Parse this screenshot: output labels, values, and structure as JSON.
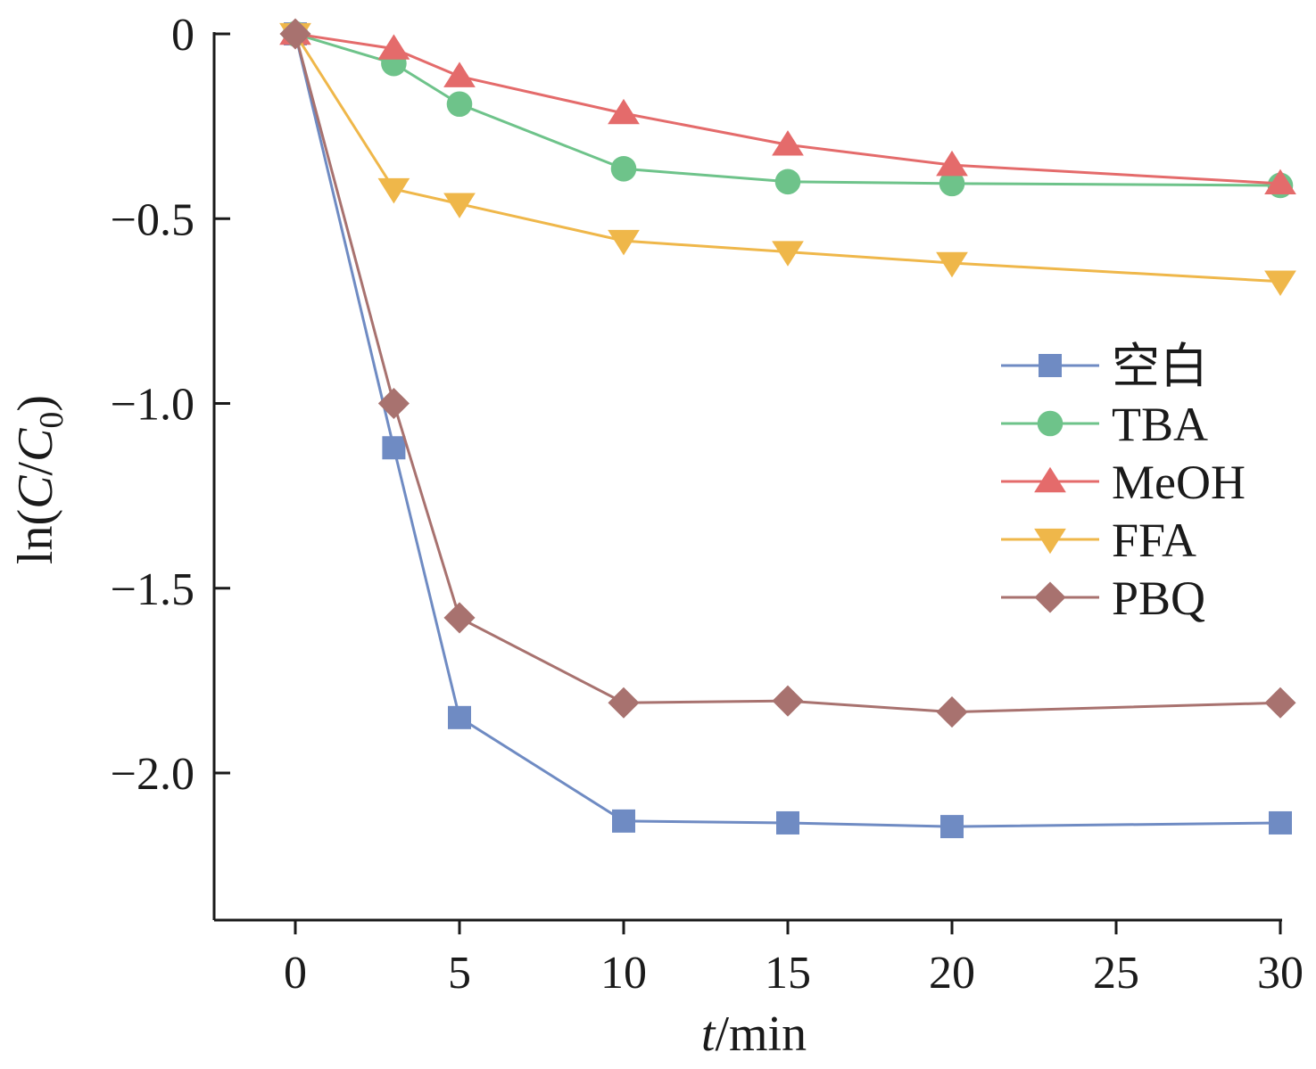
{
  "chart_data": {
    "type": "line",
    "xlabel": {
      "italic": "t",
      "rest": "/min"
    },
    "ylabel": {
      "prefix": "ln(",
      "italic1": "C",
      "slash": "/",
      "italic2": "C",
      "subscript": "0",
      "suffix": ")"
    },
    "xlim": [
      -2.5,
      30
    ],
    "ylim": [
      -2.4,
      0
    ],
    "xticks": [
      0,
      5,
      10,
      15,
      20,
      25,
      30
    ],
    "xtick_labels": [
      "0",
      "5",
      "10",
      "15",
      "20",
      "25",
      "30"
    ],
    "yticks": [
      0,
      -0.5,
      -1.0,
      -1.5,
      -2.0
    ],
    "ytick_labels": [
      "0",
      "−0.5",
      "−1.0",
      "−1.5",
      "−2.0"
    ],
    "grid": false,
    "legend_position": "right",
    "x": [
      0,
      3,
      5,
      10,
      15,
      20,
      30
    ],
    "series": [
      {
        "name": "空白",
        "marker": "square",
        "color": "#6f8bc3",
        "values": [
          0,
          -1.12,
          -1.85,
          -2.13,
          -2.135,
          -2.145,
          -2.135
        ]
      },
      {
        "name": "TBA",
        "marker": "circle",
        "color": "#6ec38a",
        "values": [
          0,
          -0.08,
          -0.19,
          -0.365,
          -0.4,
          -0.405,
          -0.41
        ]
      },
      {
        "name": "MeOH",
        "marker": "triangle-up",
        "color": "#e46b6b",
        "values": [
          0,
          -0.04,
          -0.115,
          -0.215,
          -0.3,
          -0.355,
          -0.405
        ]
      },
      {
        "name": "FFA",
        "marker": "triangle-down",
        "color": "#efb74a",
        "values": [
          0,
          -0.42,
          -0.46,
          -0.56,
          -0.59,
          -0.62,
          -0.67
        ]
      },
      {
        "name": "PBQ",
        "marker": "diamond",
        "color": "#a8726f",
        "values": [
          0,
          -1.0,
          -1.58,
          -1.81,
          -1.805,
          -1.835,
          -1.81
        ]
      }
    ]
  }
}
